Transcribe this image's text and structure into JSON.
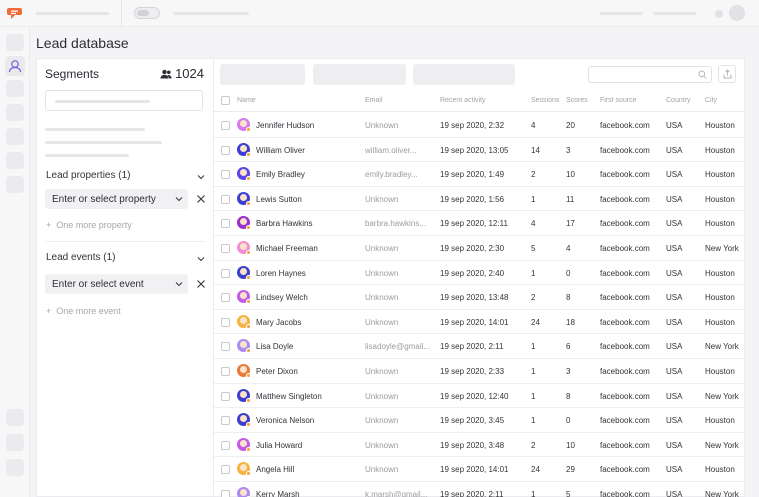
{
  "page": {
    "title": "Lead database"
  },
  "segments": {
    "title": "Segments",
    "count": "1024",
    "lead_properties": {
      "header": "Lead properties (1)",
      "select": "Enter or select property",
      "more": "One more property"
    },
    "lead_events": {
      "header": "Lead events (1)",
      "select": "Enter or select event",
      "more": "One more event"
    }
  },
  "table": {
    "columns": [
      "Name",
      "Email",
      "Recent activity",
      "Sessions",
      "Scores",
      "First source",
      "Country",
      "City"
    ],
    "rows": [
      {
        "name": "Jennifer Hudson",
        "email": "Unknown",
        "activity": "19 sep 2020, 2:32",
        "sessions": "4",
        "scores": "20",
        "source": "facebook.com",
        "country": "USA",
        "city": "Houston",
        "avatar": "#d57af0"
      },
      {
        "name": "William Oliver",
        "email": "william.oliver...",
        "activity": "19 sep 2020, 13:05",
        "sessions": "14",
        "scores": "3",
        "source": "facebook.com",
        "country": "USA",
        "city": "Houston",
        "avatar": "#3d3fd1"
      },
      {
        "name": "Emily Bradley",
        "email": "emily.bradley...",
        "activity": "19 sep 2020, 1:49",
        "sessions": "2",
        "scores": "10",
        "source": "facebook.com",
        "country": "USA",
        "city": "Houston",
        "avatar": "#5a47e6"
      },
      {
        "name": "Lewis Sutton",
        "email": "Unknown",
        "activity": "19 sep 2020, 1:56",
        "sessions": "1",
        "scores": "11",
        "source": "facebook.com",
        "country": "USA",
        "city": "Houston",
        "avatar": "#3d3fd1"
      },
      {
        "name": "Barbra Hawkins",
        "email": "barbra.hawkins...",
        "activity": "19 sep 2020, 12:11",
        "sessions": "4",
        "scores": "17",
        "source": "facebook.com",
        "country": "USA",
        "city": "Houston",
        "avatar": "#9b2fc9"
      },
      {
        "name": "Michael Freeman",
        "email": "Unknown",
        "activity": "19 sep 2020, 2:30",
        "sessions": "5",
        "scores": "4",
        "source": "facebook.com",
        "country": "USA",
        "city": "New York",
        "avatar": "#f08fd4"
      },
      {
        "name": "Loren Haynes",
        "email": "Unknown",
        "activity": "19 sep 2020, 2:40",
        "sessions": "1",
        "scores": "0",
        "source": "facebook.com",
        "country": "USA",
        "city": "Houston",
        "avatar": "#3d3fd1"
      },
      {
        "name": "Lindsey Welch",
        "email": "Unknown",
        "activity": "19 sep 2020, 13:48",
        "sessions": "2",
        "scores": "8",
        "source": "facebook.com",
        "country": "USA",
        "city": "Houston",
        "avatar": "#c25be8"
      },
      {
        "name": "Mary Jacobs",
        "email": "Unknown",
        "activity": "19 sep 2020, 14:01",
        "sessions": "24",
        "scores": "18",
        "source": "facebook.com",
        "country": "USA",
        "city": "Houston",
        "avatar": "#f3b53f"
      },
      {
        "name": "Lisa Doyle",
        "email": "lisadoyle@gmail...",
        "activity": "19 sep 2020, 2:11",
        "sessions": "1",
        "scores": "6",
        "source": "facebook.com",
        "country": "USA",
        "city": "New York",
        "avatar": "#a98bf2"
      },
      {
        "name": "Peter Dixon",
        "email": "Unknown",
        "activity": "19 sep 2020, 2:33",
        "sessions": "1",
        "scores": "3",
        "source": "facebook.com",
        "country": "USA",
        "city": "Houston",
        "avatar": "#e8793a"
      },
      {
        "name": "Matthew Singleton",
        "email": "Unknown",
        "activity": "19 sep 2020, 12:40",
        "sessions": "1",
        "scores": "8",
        "source": "facebook.com",
        "country": "USA",
        "city": "New York",
        "avatar": "#3d3fd1"
      },
      {
        "name": "Veronica Nelson",
        "email": "Unknown",
        "activity": "19 sep 2020, 3:45",
        "sessions": "1",
        "scores": "0",
        "source": "facebook.com",
        "country": "USA",
        "city": "Houston",
        "avatar": "#3d3fd1"
      },
      {
        "name": "Julia Howard",
        "email": "Unknown",
        "activity": "19 sep 2020, 3:48",
        "sessions": "2",
        "scores": "10",
        "source": "facebook.com",
        "country": "USA",
        "city": "New York",
        "avatar": "#c25be8"
      },
      {
        "name": "Angela Hill",
        "email": "Unknown",
        "activity": "19 sep 2020, 14:01",
        "sessions": "24",
        "scores": "29",
        "source": "facebook.com",
        "country": "USA",
        "city": "Houston",
        "avatar": "#f3b53f"
      },
      {
        "name": "Kerry Marsh",
        "email": "k.marsh@gmail...",
        "activity": "19 sep 2020, 2:11",
        "sessions": "1",
        "scores": "5",
        "source": "facebook.com",
        "country": "USA",
        "city": "New York",
        "avatar": "#a98bf2"
      }
    ]
  },
  "colors": {
    "brand": "#f26a35",
    "accent": "#4a4fd8"
  }
}
